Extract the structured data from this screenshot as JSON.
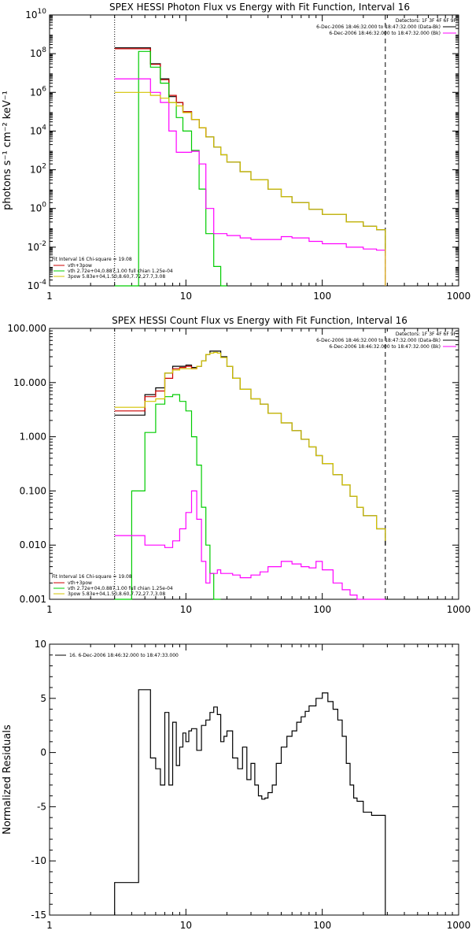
{
  "chart_data": [
    {
      "type": "line",
      "title": "SPEX HESSI Photon Flux vs Energy with Fit Function, Interval 16",
      "ylabel": "photons s⁻¹ cm⁻² keV⁻¹",
      "xlabel": "",
      "xscale": "log",
      "yscale": "log",
      "xlim": [
        1,
        1000
      ],
      "ylim": [
        0.0001,
        10000000000
      ],
      "x_ticks": [
        "1",
        "10",
        "100",
        "1000"
      ],
      "y_ticks": [
        {
          "base": "10",
          "exp": "-4",
          "value": 0.0001
        },
        {
          "base": "10",
          "exp": "-2",
          "value": 0.01
        },
        {
          "base": "10",
          "exp": "0",
          "value": 1
        },
        {
          "base": "10",
          "exp": "2",
          "value": 100
        },
        {
          "base": "10",
          "exp": "4",
          "value": 10000
        },
        {
          "base": "10",
          "exp": "6",
          "value": 1000000
        },
        {
          "base": "10",
          "exp": "8",
          "value": 100000000
        },
        {
          "base": "10",
          "exp": "10",
          "value": 10000000000
        }
      ],
      "header": {
        "detectors": "Detectors: 1F 3F 4F 6F 9F",
        "line1": "6-Dec-2006 18:46:32.000 to 18:47:32.000 (Data-Bk)",
        "line2": "6-Dec-2006 18:46:32.000 to 18:47:32.000 (Bk)"
      },
      "legend_title": "Fit Interval 16   Chi-square = 19.08",
      "legend": [
        "vth+3pow",
        "vth 2.72e+04,0.887,1.00  full chian 1.25e-04",
        "3pow 5.83e+04,1.50,8.60,7.72,27.7,3.08"
      ],
      "markers": [
        {
          "x": 3.0,
          "style": "dotted"
        },
        {
          "x": 290,
          "style": "dashed"
        }
      ],
      "series": [
        {
          "color": "#000000",
          "x": [
            3,
            4.5,
            5.5,
            6.5,
            7.5,
            8.5,
            9.5,
            11,
            12.5,
            14,
            16,
            18,
            20,
            25,
            30,
            40,
            50,
            60,
            80,
            100,
            150,
            200,
            250,
            290
          ],
          "y": [
            200000000,
            200000000,
            30000000,
            5000000,
            600000,
            300000,
            100000,
            40000,
            15000,
            5000,
            1500,
            600,
            250,
            80,
            30,
            10,
            4,
            2,
            0.9,
            0.5,
            0.2,
            0.12,
            0.08,
            0.005
          ]
        },
        {
          "color": "#cc0000",
          "x": [
            3,
            4.5,
            5.5,
            6.5,
            7.5,
            8.5,
            9.5,
            11,
            12.5,
            14
          ],
          "y": [
            180000000,
            180000000,
            28000000,
            4500000,
            700000,
            300000,
            100000,
            40000,
            15000,
            5000
          ]
        },
        {
          "color": "#00cc00",
          "x": [
            3,
            4.5,
            5.5,
            6.5,
            7.5,
            8.5,
            9.5,
            11,
            12.5,
            14,
            16,
            18,
            20
          ],
          "y": [
            0.0001,
            130000000,
            20000000,
            3000000,
            300000,
            50000,
            10000,
            1000,
            10,
            0.05,
            0.001,
            0.0001,
            0.0001
          ]
        },
        {
          "color": "#ff00ff",
          "x": [
            3,
            4.5,
            5.5,
            6.5,
            7.5,
            8.5,
            9.5,
            11,
            12.5,
            14,
            16,
            18,
            20,
            25,
            30,
            40,
            50,
            60,
            80,
            100,
            150,
            200,
            250,
            290
          ],
          "y": [
            5000000,
            5000000,
            1000000,
            300000,
            10000,
            800,
            800,
            900,
            200,
            1,
            0.05,
            0.05,
            0.04,
            0.03,
            0.025,
            0.025,
            0.035,
            0.03,
            0.02,
            0.015,
            0.01,
            0.008,
            0.007,
            0.0001
          ]
        },
        {
          "color": "#d4c400",
          "x": [
            3,
            4.5,
            5.5,
            6.5,
            7.5,
            8.5,
            9.5,
            11,
            12.5,
            14,
            16,
            18,
            20,
            25,
            30,
            40,
            50,
            60,
            80,
            100,
            150,
            200,
            250,
            290
          ],
          "y": [
            1000000,
            1000000,
            700000,
            500000,
            300000,
            200000,
            90000,
            40000,
            15000,
            5000,
            1500,
            600,
            250,
            80,
            30,
            10,
            4,
            2,
            0.9,
            0.5,
            0.2,
            0.12,
            0.08,
            0.0001
          ]
        }
      ]
    },
    {
      "type": "line",
      "title": "SPEX HESSI Count Flux vs Energy with Fit Function, Interval 16",
      "ylabel": "",
      "xlabel": "",
      "xscale": "log",
      "yscale": "log",
      "xlim": [
        1,
        1000
      ],
      "ylim": [
        0.001,
        100
      ],
      "x_ticks": [
        "1",
        "10",
        "100",
        "1000"
      ],
      "y_ticks": [
        {
          "label": "0.001",
          "value": 0.001
        },
        {
          "label": "0.010",
          "value": 0.01
        },
        {
          "label": "0.100",
          "value": 0.1
        },
        {
          "label": "1.000",
          "value": 1
        },
        {
          "label": "10.000",
          "value": 10
        },
        {
          "label": "100.000",
          "value": 100
        }
      ],
      "header": {
        "detectors": "Detectors: 1F 3F 4F 6F 9F",
        "line1": "6-Dec-2006 18:46:32.000 to 18:47:32.000 (Data-Bk)",
        "line2": "6-Dec-2006 18:46:32.000 to 18:47:32.000 (Bk)"
      },
      "legend_title": "Fit Interval 16   Chi-square = 19.08",
      "legend": [
        "vth+3pow",
        "vth 2.72e+04,0.887,1.00  full chian 1.25e-04",
        "3pow 5.83e+04,1.50,8.60,7.72,27.7,3.08"
      ],
      "markers": [
        {
          "x": 3.0,
          "style": "dotted"
        },
        {
          "x": 290,
          "style": "dashed"
        }
      ],
      "series": [
        {
          "color": "#000000",
          "x": [
            3,
            4,
            5,
            6,
            7,
            8,
            9,
            10,
            11,
            12,
            13,
            14,
            15,
            16,
            17,
            18,
            20,
            22,
            25,
            30,
            35,
            40,
            50,
            60,
            70,
            80,
            90,
            100,
            120,
            140,
            160,
            180,
            200,
            250,
            290
          ],
          "y": [
            2.5,
            2.5,
            6,
            8,
            15,
            20,
            20,
            21,
            19,
            20,
            25,
            33,
            38,
            38,
            38,
            30,
            20,
            12,
            7.5,
            5,
            4,
            2.7,
            1.8,
            1.3,
            0.9,
            0.65,
            0.45,
            0.32,
            0.2,
            0.13,
            0.08,
            0.05,
            0.035,
            0.02,
            0.01
          ]
        },
        {
          "color": "#cc0000",
          "x": [
            3,
            4,
            5,
            6,
            7,
            8,
            9,
            10,
            11,
            12
          ],
          "y": [
            3,
            3,
            5.5,
            7,
            12,
            18,
            19,
            20,
            18,
            20
          ]
        },
        {
          "color": "#00cc00",
          "x": [
            3,
            4,
            5,
            6,
            7,
            8,
            9,
            10,
            11,
            12,
            13,
            14,
            15,
            16,
            17,
            18
          ],
          "y": [
            0.001,
            0.1,
            1.2,
            4,
            5.5,
            6,
            4.5,
            3,
            1,
            0.3,
            0.05,
            0.01,
            0.003,
            0.001,
            0.001,
            0.001
          ]
        },
        {
          "color": "#ff00ff",
          "x": [
            3,
            4,
            5,
            6,
            7,
            8,
            9,
            10,
            11,
            12,
            13,
            14,
            15,
            16,
            17,
            18,
            20,
            22,
            25,
            30,
            35,
            40,
            50,
            60,
            70,
            80,
            90,
            100,
            120,
            140,
            160,
            180,
            200,
            250,
            290
          ],
          "y": [
            0.015,
            0.015,
            0.01,
            0.01,
            0.009,
            0.012,
            0.02,
            0.04,
            0.1,
            0.03,
            0.005,
            0.002,
            0.003,
            0.003,
            0.0035,
            0.003,
            0.003,
            0.0028,
            0.0025,
            0.0028,
            0.0032,
            0.004,
            0.005,
            0.0045,
            0.004,
            0.0038,
            0.005,
            0.0035,
            0.002,
            0.0015,
            0.0012,
            0.001,
            0.001,
            0.001,
            0.001
          ]
        },
        {
          "color": "#d4c400",
          "x": [
            3,
            4,
            5,
            6,
            7,
            8,
            9,
            10,
            11,
            12,
            13,
            14,
            15,
            16,
            17,
            18,
            20,
            22,
            25,
            30,
            35,
            40,
            50,
            60,
            70,
            80,
            90,
            100,
            120,
            140,
            160,
            180,
            200,
            250,
            290
          ],
          "y": [
            3.5,
            3.5,
            4.5,
            5,
            15,
            17,
            18,
            18,
            18,
            20,
            25,
            33,
            35,
            36,
            35,
            29,
            20,
            12,
            7.5,
            5,
            4,
            2.7,
            1.8,
            1.3,
            0.9,
            0.65,
            0.45,
            0.32,
            0.2,
            0.13,
            0.08,
            0.05,
            0.035,
            0.02,
            0.012
          ]
        }
      ]
    },
    {
      "type": "line",
      "title": "",
      "ylabel": "Normalized Residuals",
      "xlabel": "",
      "xscale": "log",
      "yscale": "linear",
      "xlim": [
        1,
        1000
      ],
      "ylim": [
        -15,
        10
      ],
      "x_ticks": [
        "1",
        "10",
        "100",
        "1000"
      ],
      "y_ticks": [
        {
          "label": "10",
          "value": 10
        },
        {
          "label": "5",
          "value": 5
        },
        {
          "label": "0",
          "value": 0
        },
        {
          "label": "-5",
          "value": -5
        },
        {
          "label": "-10",
          "value": -10
        },
        {
          "label": "-15",
          "value": -15
        }
      ],
      "legend": [
        "16.  6-Dec-2006 18:46:32.000 to 18:47:33.000"
      ],
      "series": [
        {
          "color": "#000000",
          "edges": [
            3.0,
            4.5,
            5.5,
            6.0,
            6.5,
            7.0,
            7.5,
            8.0,
            8.5,
            9.0,
            9.5,
            10.0,
            10.5,
            11.0,
            12.0,
            13.0,
            14.0,
            15.0,
            16.0,
            17.0,
            18.0,
            19.0,
            20.0,
            22.0,
            24.0,
            26.0,
            28.0,
            30.0,
            32.0,
            34.0,
            36.0,
            38.0,
            40.0,
            43.0,
            46.0,
            50.0,
            55.0,
            60.0,
            65.0,
            70.0,
            75.0,
            80.0,
            90.0,
            100.0,
            110.0,
            120.0,
            130.0,
            140.0,
            150.0,
            160.0,
            170.0,
            180.0,
            200.0,
            230.0,
            290.0
          ],
          "values": [
            -12,
            5.8,
            -0.5,
            -1.5,
            -3.0,
            3.7,
            -3.0,
            2.8,
            -1.2,
            0.5,
            1.8,
            1.0,
            2.0,
            2.2,
            0.2,
            2.5,
            3.0,
            3.7,
            4.2,
            3.5,
            1.0,
            1.5,
            2.0,
            -0.5,
            -1.5,
            0.5,
            -2.5,
            -1.0,
            -3.0,
            -4.0,
            -4.3,
            -4.2,
            -3.7,
            -3.0,
            -1.0,
            0.5,
            1.5,
            2.0,
            2.8,
            3.3,
            3.8,
            4.3,
            5.0,
            5.5,
            4.7,
            4.0,
            3.0,
            1.5,
            -1.0,
            -3.0,
            -4.2,
            -4.5,
            -5.5,
            -5.8
          ]
        }
      ]
    }
  ]
}
